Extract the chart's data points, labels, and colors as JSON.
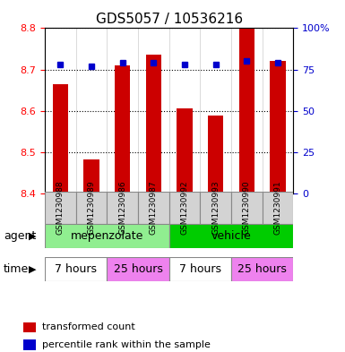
{
  "title": "GDS5057 / 10536216",
  "samples": [
    "GSM1230988",
    "GSM1230989",
    "GSM1230986",
    "GSM1230987",
    "GSM1230992",
    "GSM1230993",
    "GSM1230990",
    "GSM1230991"
  ],
  "red_values": [
    8.665,
    8.483,
    8.71,
    8.735,
    8.607,
    8.588,
    8.8,
    8.72
  ],
  "blue_values": [
    78,
    77,
    79,
    79,
    78,
    78,
    80,
    79
  ],
  "ylim_left": [
    8.4,
    8.8
  ],
  "ylim_right": [
    0,
    100
  ],
  "yticks_left": [
    8.4,
    8.5,
    8.6,
    8.7,
    8.8
  ],
  "yticks_right": [
    0,
    25,
    50,
    75,
    100
  ],
  "ytick_labels_right": [
    "0",
    "25",
    "50",
    "75",
    "100%"
  ],
  "bar_color": "#cc0000",
  "dot_color": "#0000cc",
  "background_color": "#ffffff",
  "plot_bg_color": "#ffffff",
  "grid_color": "#000000",
  "agent_row": [
    {
      "label": "mepenzolate",
      "start": 0,
      "end": 4,
      "color": "#90ee90"
    },
    {
      "label": "vehicle",
      "start": 4,
      "end": 8,
      "color": "#00cc00"
    }
  ],
  "time_row": [
    {
      "label": "7 hours",
      "start": 0,
      "end": 2,
      "color": "#ffffff"
    },
    {
      "label": "25 hours",
      "start": 2,
      "end": 4,
      "color": "#ee82ee"
    },
    {
      "label": "7 hours",
      "start": 4,
      "end": 6,
      "color": "#ffffff"
    },
    {
      "label": "25 hours",
      "start": 6,
      "end": 8,
      "color": "#ee82ee"
    }
  ],
  "legend_items": [
    {
      "color": "#cc0000",
      "label": "transformed count"
    },
    {
      "color": "#0000cc",
      "label": "percentile rank within the sample"
    }
  ],
  "bar_width": 0.5,
  "xlabel_agent": "agent",
  "xlabel_time": "time"
}
